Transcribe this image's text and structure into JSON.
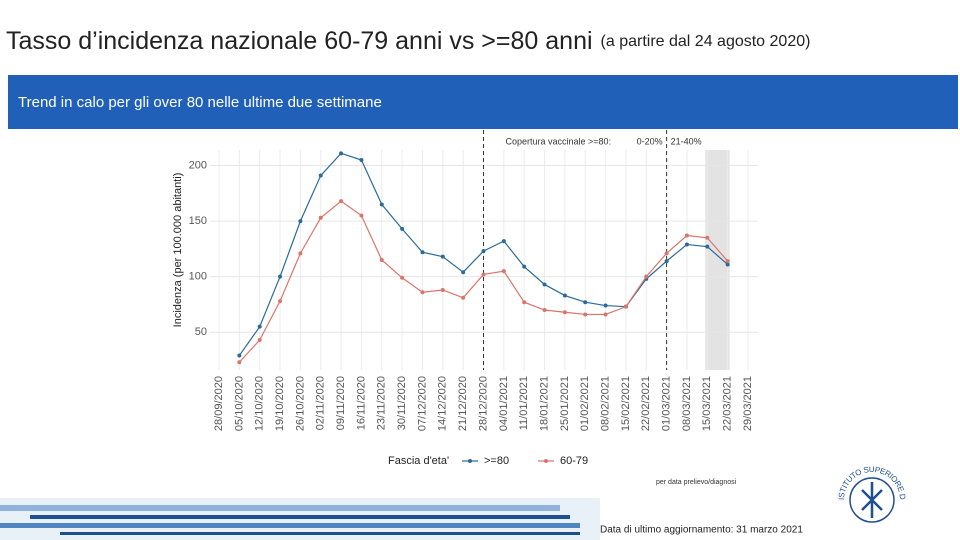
{
  "title": "Tasso d’incidenza nazionale 60-79 anni vs >=80 anni",
  "subtitle": "(a partire dal 24 agosto 2020)",
  "banner": "Trend in calo per gli over 80 nelle ultime due settimane",
  "chart_data": {
    "type": "line",
    "y_label": "Incidenza (per 100.000 abitanti)",
    "categories": [
      "28/09/2020",
      "05/10/2020",
      "12/10/2020",
      "19/10/2020",
      "26/10/2020",
      "02/11/2020",
      "09/11/2020",
      "16/11/2020",
      "23/11/2020",
      "30/11/2020",
      "07/12/2020",
      "14/12/2020",
      "21/12/2020",
      "28/12/2020",
      "04/01/2021",
      "11/01/2021",
      "18/01/2021",
      "25/01/2021",
      "01/02/2021",
      "08/02/2021",
      "15/02/2021",
      "22/02/2021",
      "01/03/2021",
      "08/03/2021",
      "15/03/2021",
      "22/03/2021",
      "29/03/2021"
    ],
    "series": [
      {
        "name": ">=80",
        "color": "#2b6a99",
        "values": [
          null,
          29,
          55,
          100,
          150,
          191,
          211,
          205,
          165,
          143,
          122,
          118,
          104,
          123,
          132,
          109,
          93,
          83,
          77,
          74,
          73,
          98,
          114,
          129,
          127,
          111,
          null
        ]
      },
      {
        "name": "60-79",
        "color": "#d9756a",
        "values": [
          null,
          23,
          43,
          78,
          121,
          153,
          168,
          155,
          115,
          99,
          86,
          88,
          81,
          102,
          105,
          77,
          70,
          68,
          66,
          66,
          73,
          100,
          121,
          137,
          135,
          114,
          null
        ]
      }
    ],
    "ylim": [
      16,
      214
    ],
    "yticks": [
      50,
      100,
      150,
      200
    ],
    "grid": true,
    "legend_title": "Fascia d'eta'",
    "legend_position": "bottom",
    "vlines": [
      "28/12/2020",
      "01/03/2021"
    ],
    "shade": [
      "15/03/2021",
      "22/03/2021"
    ],
    "annotation": {
      "label": "Copertura vaccinale >=80:",
      "ranges": [
        "0-20%",
        "21-40%"
      ]
    },
    "note": "per data prelievo/diagnosi"
  },
  "footer": "Data di ultimo aggiornamento: 31 marzo 2021",
  "logo_text": "ISTITUTO SUPERIORE DI SANITÀ"
}
